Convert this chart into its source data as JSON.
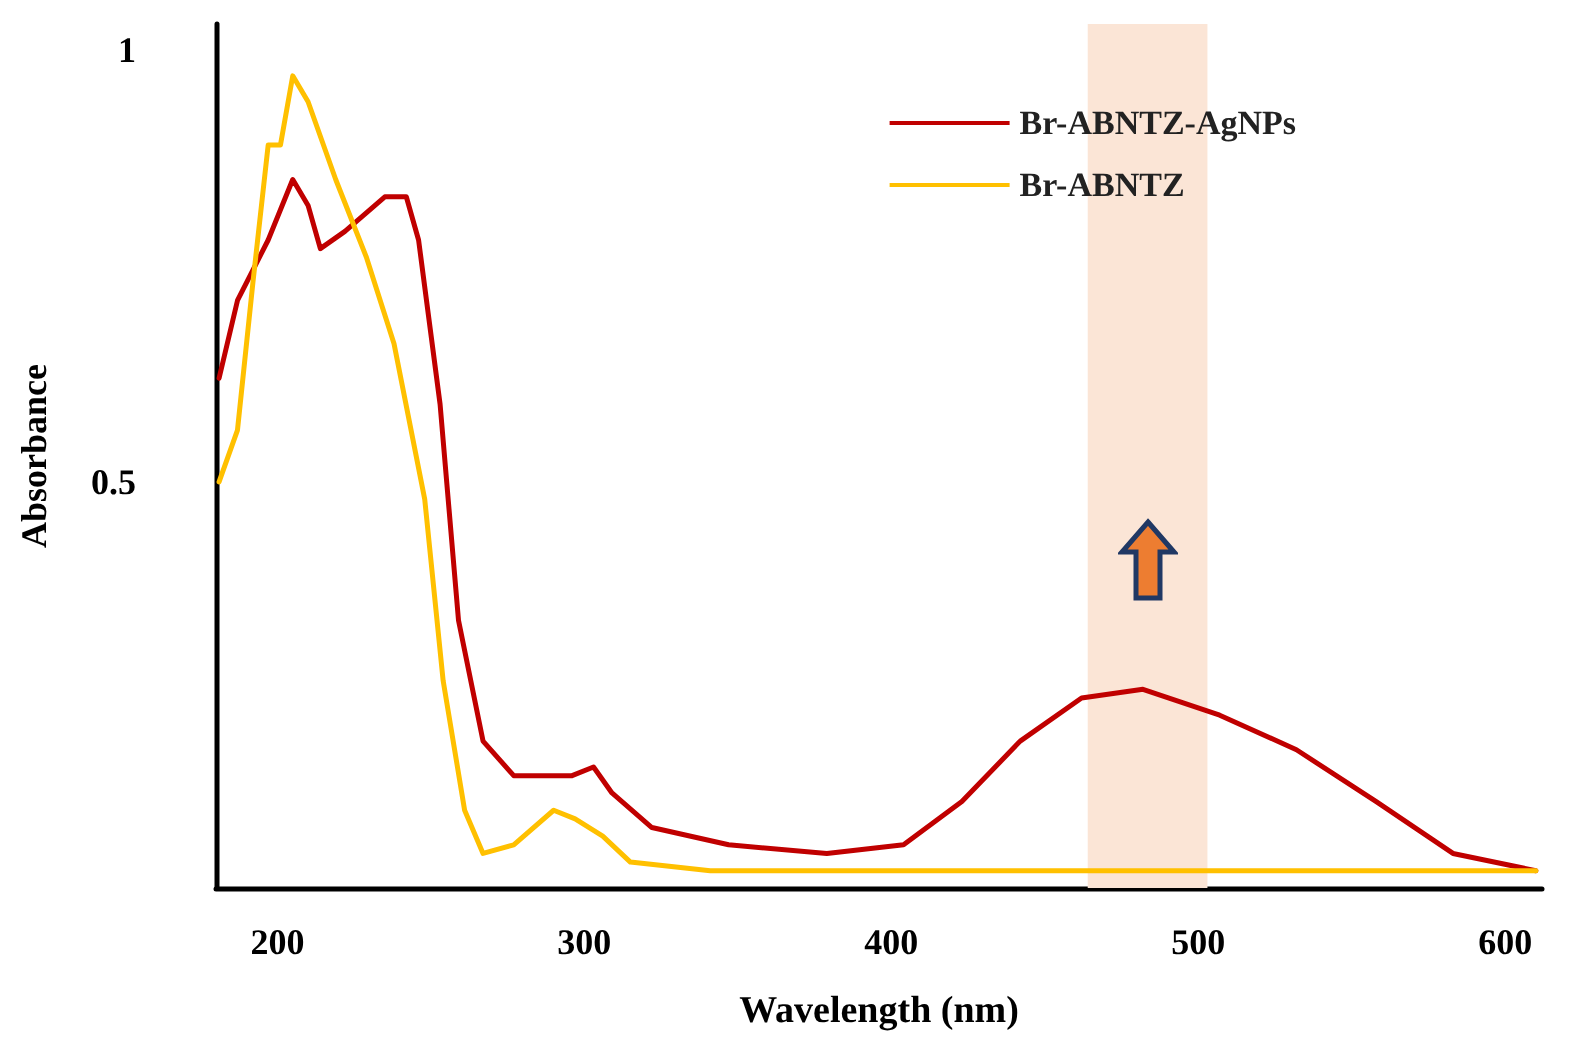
{
  "chart_data": {
    "type": "line",
    "xlabel": "Wavelength (nm)",
    "ylabel": "Absorbance",
    "xlim": [
      180,
      612
    ],
    "xticks": [
      200,
      300,
      400,
      500,
      600
    ],
    "ylim": [
      0.03,
      1.03
    ],
    "yticks": [
      0.5,
      1
    ],
    "grid": false,
    "legend": "top right",
    "marker": "none",
    "line_style": "solid",
    "series": [
      {
        "name": "Br-ABNTZ-AgNPs",
        "color": "#c00000",
        "x": [
          181,
          187,
          197,
          205,
          210,
          214,
          222,
          235,
          242,
          246,
          253,
          259,
          267,
          277,
          290,
          296,
          303,
          309,
          322,
          347,
          379,
          404,
          423,
          442,
          462,
          482,
          507,
          532,
          558,
          583,
          610
        ],
        "values": [
          0.62,
          0.71,
          0.78,
          0.85,
          0.82,
          0.77,
          0.79,
          0.83,
          0.83,
          0.78,
          0.59,
          0.34,
          0.2,
          0.16,
          0.16,
          0.16,
          0.17,
          0.14,
          0.1,
          0.08,
          0.07,
          0.08,
          0.13,
          0.2,
          0.25,
          0.26,
          0.23,
          0.19,
          0.13,
          0.07,
          0.05
        ]
      },
      {
        "name": "Br-ABNTZ",
        "color": "#ffc000",
        "x": [
          181,
          187,
          192,
          197,
          201,
          205,
          210,
          219,
          229,
          238,
          248,
          254,
          261,
          267,
          277,
          290,
          297,
          306,
          315,
          341,
          431,
          610
        ],
        "values": [
          0.5,
          0.56,
          0.73,
          0.89,
          0.89,
          0.97,
          0.94,
          0.85,
          0.76,
          0.66,
          0.48,
          0.27,
          0.12,
          0.07,
          0.08,
          0.12,
          0.11,
          0.09,
          0.06,
          0.05,
          0.05,
          0.05
        ]
      }
    ],
    "bands": [
      {
        "axis": "x",
        "from": 464,
        "to": 503,
        "color": "#fbe5d6"
      }
    ]
  }
}
